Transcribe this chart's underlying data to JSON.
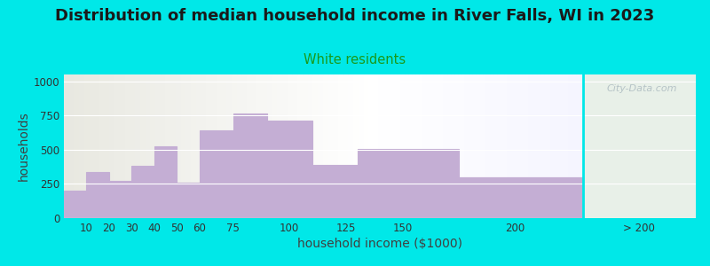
{
  "title": "Distribution of median household income in River Falls, WI in 2023",
  "subtitle": "White residents",
  "xlabel": "household income ($1000)",
  "ylabel": "households",
  "bar_lefts": [
    0,
    10,
    20,
    30,
    40,
    50,
    60,
    75,
    90,
    110,
    130,
    175,
    230
  ],
  "bar_rights": [
    10,
    20,
    30,
    40,
    50,
    60,
    75,
    90,
    110,
    130,
    175,
    230,
    280
  ],
  "values": [
    200,
    335,
    270,
    385,
    525,
    260,
    640,
    765,
    715,
    390,
    505,
    295,
    0
  ],
  "xtick_positions": [
    10,
    20,
    30,
    40,
    50,
    60,
    75,
    100,
    125,
    150,
    200,
    255
  ],
  "xtick_labels": [
    "10",
    "20",
    "30",
    "40",
    "50",
    "60",
    "75",
    "100",
    "125",
    "150",
    "200",
    "> 200"
  ],
  "bar_color": "#c4aed4",
  "bar_edge_color": "#ffffff",
  "background_outer": "#00e8e8",
  "title_fontsize": 13,
  "subtitle_color": "#1a9a1a",
  "subtitle_fontsize": 10.5,
  "ylabel_color": "#404040",
  "xlabel_color": "#404040",
  "yticks": [
    0,
    250,
    500,
    750,
    1000
  ],
  "ylim": [
    0,
    1050
  ],
  "watermark": "City-Data.com",
  "divider_x": 230,
  "green_end_x": 135
}
